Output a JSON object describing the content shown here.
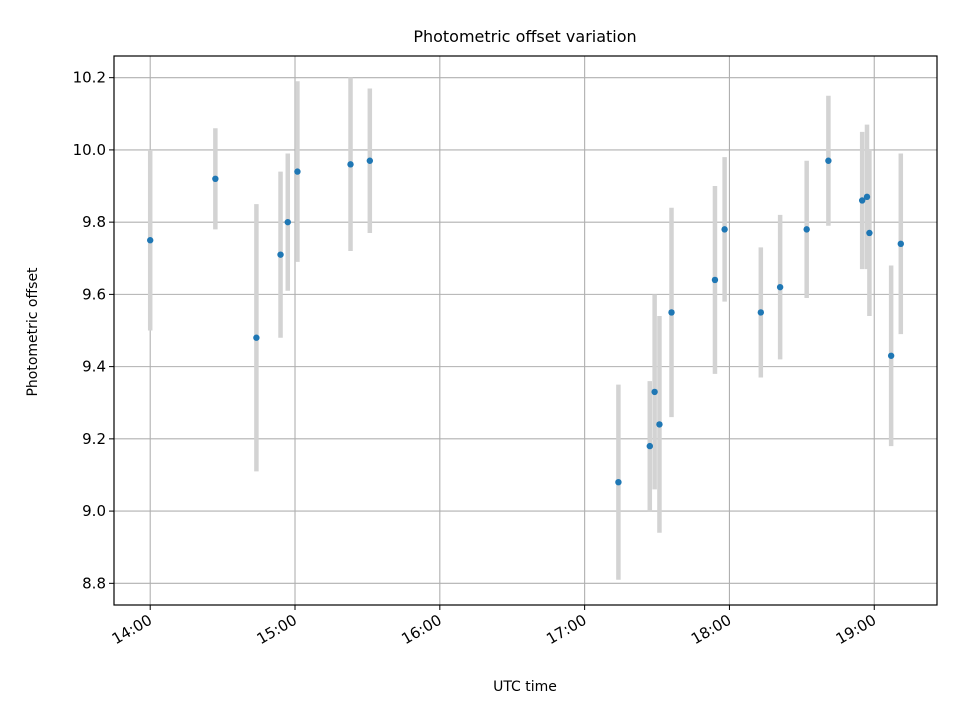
{
  "chart_data": {
    "type": "scatter",
    "title": "Photometric offset variation",
    "xlabel": "UTC time",
    "ylabel": "Photometric offset",
    "x_unit": "time",
    "xlim": [
      "13:45",
      "19:26"
    ],
    "ylim": [
      8.74,
      10.26
    ],
    "x_ticks": [
      "14:00",
      "15:00",
      "16:00",
      "17:00",
      "18:00",
      "19:00"
    ],
    "y_ticks": [
      "8.8",
      "9.0",
      "9.2",
      "9.4",
      "9.6",
      "9.8",
      "10.0",
      "10.2"
    ],
    "grid": true,
    "marker_color": "#1f77b4",
    "errorbar_color": "#d3d3d3",
    "points": [
      {
        "time": "14:00",
        "offset": 9.75,
        "error": 0.25
      },
      {
        "time": "14:27",
        "offset": 9.92,
        "error": 0.14
      },
      {
        "time": "14:44",
        "offset": 9.48,
        "error": 0.37
      },
      {
        "time": "14:54",
        "offset": 9.71,
        "error": 0.23
      },
      {
        "time": "14:57",
        "offset": 9.8,
        "error": 0.19
      },
      {
        "time": "15:01",
        "offset": 9.94,
        "error": 0.25
      },
      {
        "time": "15:23",
        "offset": 9.96,
        "error": 0.24
      },
      {
        "time": "15:31",
        "offset": 9.97,
        "error": 0.2
      },
      {
        "time": "17:14",
        "offset": 9.08,
        "error": 0.27
      },
      {
        "time": "17:27",
        "offset": 9.18,
        "error": 0.18
      },
      {
        "time": "17:29",
        "offset": 9.33,
        "error": 0.27
      },
      {
        "time": "17:31",
        "offset": 9.24,
        "error": 0.3
      },
      {
        "time": "17:36",
        "offset": 9.55,
        "error": 0.29
      },
      {
        "time": "17:54",
        "offset": 9.64,
        "error": 0.26
      },
      {
        "time": "17:58",
        "offset": 9.78,
        "error": 0.2
      },
      {
        "time": "18:13",
        "offset": 9.55,
        "error": 0.18
      },
      {
        "time": "18:21",
        "offset": 9.62,
        "error": 0.2
      },
      {
        "time": "18:32",
        "offset": 9.78,
        "error": 0.19
      },
      {
        "time": "18:41",
        "offset": 9.97,
        "error": 0.18
      },
      {
        "time": "18:55",
        "offset": 9.86,
        "error": 0.19
      },
      {
        "time": "18:57",
        "offset": 9.87,
        "error": 0.2
      },
      {
        "time": "18:58",
        "offset": 9.77,
        "error": 0.23
      },
      {
        "time": "19:07",
        "offset": 9.43,
        "error": 0.25
      },
      {
        "time": "19:11",
        "offset": 9.74,
        "error": 0.25
      }
    ]
  }
}
